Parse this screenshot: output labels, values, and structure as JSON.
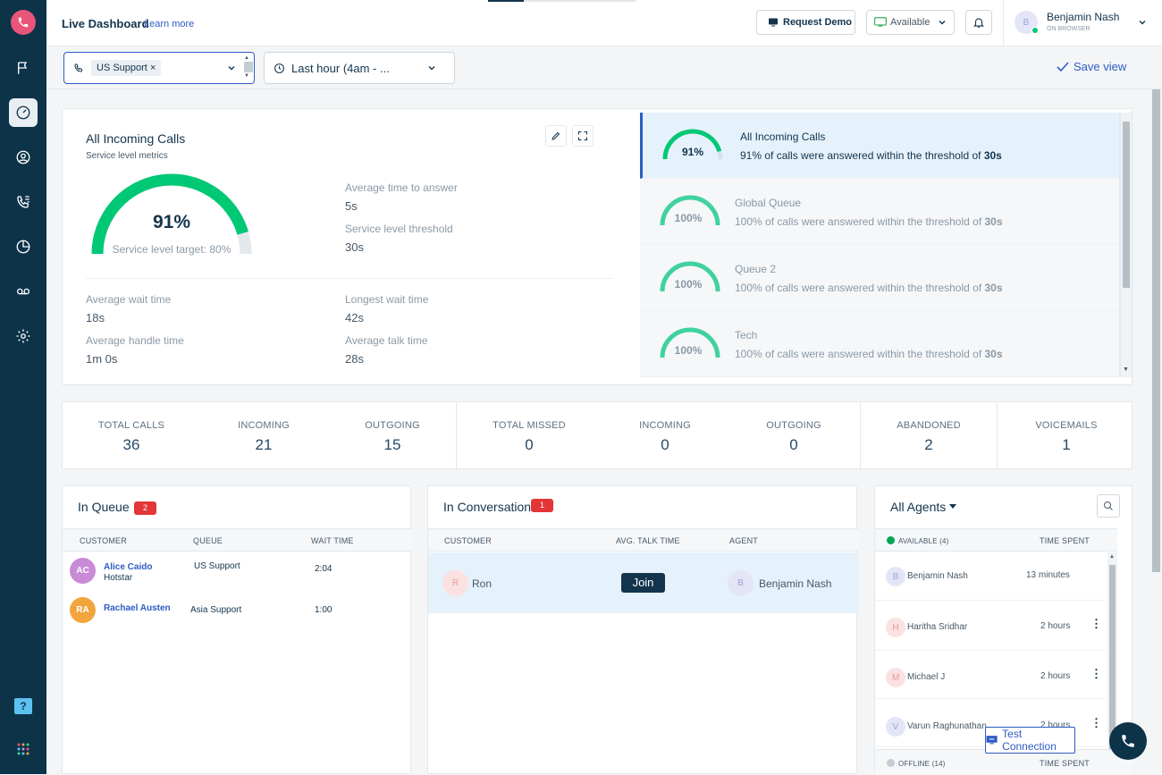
{
  "header": {
    "title": "Live Dashboard",
    "learn_more": "Learn more",
    "request_demo": "Request Demo",
    "status": "Available",
    "user_name": "Benjamin Nash",
    "user_sub": "ON BROWSER",
    "user_initial": "B"
  },
  "filters": {
    "queue_tag": "US Support",
    "time_range": "Last hour (4am - ...",
    "save_view": "Save view"
  },
  "service": {
    "title": "All Incoming Calls",
    "subtitle": "Service level metrics",
    "percent": "91%",
    "percent_value": 0.91,
    "target": "Service level target: 80%",
    "metrics": {
      "avg_answer_label": "Average time to answer",
      "avg_answer": "5s",
      "threshold_label": "Service level threshold",
      "threshold": "30s",
      "avg_wait_label": "Average wait time",
      "avg_wait": "18s",
      "longest_wait_label": "Longest wait time",
      "longest_wait": "42s",
      "avg_handle_label": "Average handle time",
      "avg_handle": "1m 0s",
      "avg_talk_label": "Average talk time",
      "avg_talk": "28s"
    },
    "queues": [
      {
        "name": "All Incoming Calls",
        "pct": "91%",
        "pct_value": 0.91,
        "desc_pre": "91% of calls were answered within the threshold of ",
        "desc_bold": "30s"
      },
      {
        "name": "Global Queue",
        "pct": "100%",
        "pct_value": 1.0,
        "desc_pre": "100% of calls were answered within the threshold of ",
        "desc_bold": "30s"
      },
      {
        "name": "Queue 2",
        "pct": "100%",
        "pct_value": 1.0,
        "desc_pre": "100% of calls were answered within the threshold of ",
        "desc_bold": "30s"
      },
      {
        "name": "Tech",
        "pct": "100%",
        "pct_value": 1.0,
        "desc_pre": "100% of calls were answered within the threshold of ",
        "desc_bold": "30s"
      }
    ]
  },
  "stats": [
    {
      "label": "TOTAL CALLS",
      "value": "36"
    },
    {
      "label": "INCOMING",
      "value": "21"
    },
    {
      "label": "OUTGOING",
      "value": "15"
    },
    {
      "label": "TOTAL MISSED",
      "value": "0"
    },
    {
      "label": "INCOMING",
      "value": "0"
    },
    {
      "label": "OUTGOING",
      "value": "0"
    },
    {
      "label": "ABANDONED",
      "value": "2"
    },
    {
      "label": "VOICEMAILS",
      "value": "1"
    }
  ],
  "in_queue": {
    "title": "In Queue",
    "count": "2",
    "headers": {
      "customer": "CUSTOMER",
      "queue": "QUEUE",
      "wait": "WAIT TIME"
    },
    "rows": [
      {
        "initials": "AC",
        "name": "Alice Caido",
        "company": "Hotstar",
        "queue": "US Support",
        "wait": "2:04",
        "color": "#c98bd6"
      },
      {
        "initials": "RA",
        "name": "Rachael Austen",
        "company": "",
        "queue": "Asia Support",
        "wait": "1:00",
        "color": "#f2a53c"
      }
    ]
  },
  "in_conversation": {
    "title": "In Conversation",
    "count": "1",
    "headers": {
      "customer": "CUSTOMER",
      "talk": "AVG. TALK TIME",
      "agent": "AGENT"
    },
    "row": {
      "customer_initial": "R",
      "customer": "Ron",
      "join": "Join",
      "agent_initial": "B",
      "agent": "Benjamin Nash"
    }
  },
  "agents": {
    "title": "All Agents",
    "available": "AVAILABLE (4)",
    "time_spent": "TIME SPENT",
    "offline": "OFFLINE (14)",
    "rows": [
      {
        "initial": "B",
        "name": "Benjamin Nash",
        "time": "13 minutes",
        "color": "#e4e6f7",
        "fg": "#9aa3d8"
      },
      {
        "initial": "H",
        "name": "Haritha Sridhar",
        "time": "2 hours",
        "color": "#fbe1e1",
        "fg": "#e89a9a"
      },
      {
        "initial": "M",
        "name": "Michael J",
        "time": "2 hours",
        "color": "#fbe1e1",
        "fg": "#e89a9a"
      },
      {
        "initial": "V",
        "name": "Varun Raghunathan",
        "time": "2 hours",
        "color": "#e4e6f7",
        "fg": "#9aa3d8"
      }
    ]
  },
  "test_connection": "Test Connection",
  "colors": {
    "gauge": "#00c875",
    "gauge_light": "#3fd2a0",
    "accent": "#2c5cc5",
    "selected": "#e6f2fb"
  }
}
